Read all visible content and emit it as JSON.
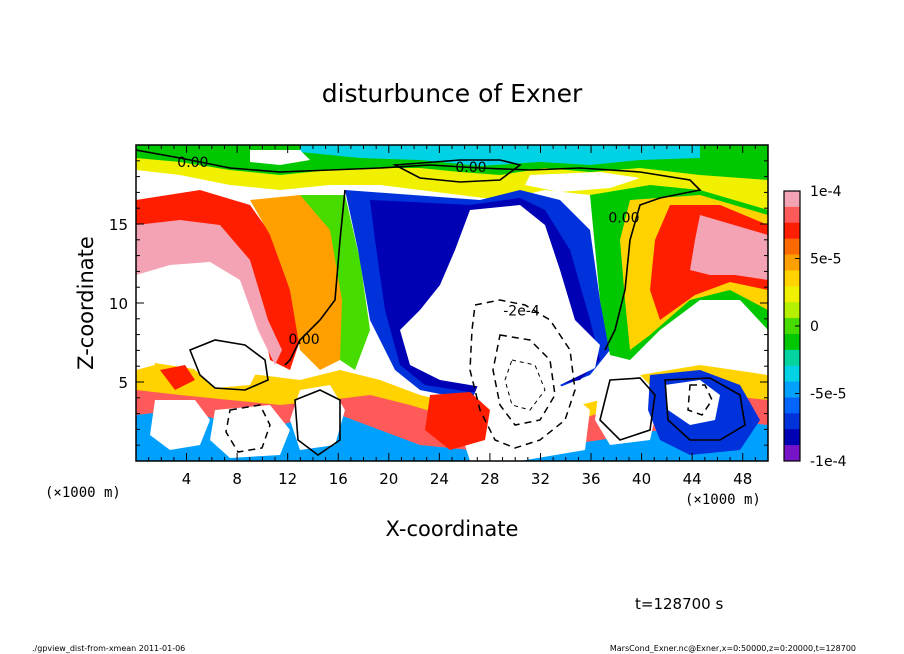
{
  "chart_data": {
    "type": "heatmap",
    "title": "disturbunce of Exner",
    "xlabel": "X-coordinate",
    "ylabel": "Z-coordinate",
    "x_unit_left": "(×1000 m)",
    "x_unit_right": "(×1000 m)",
    "xlim": [
      0,
      50
    ],
    "ylim": [
      0,
      20
    ],
    "x_ticks": [
      4,
      8,
      12,
      16,
      20,
      24,
      28,
      32,
      36,
      40,
      44,
      48
    ],
    "y_ticks": [
      5,
      10,
      15
    ],
    "colorbar": {
      "min": -0.0001,
      "max": 0.0001,
      "ticks": [
        {
          "value": 0.0001,
          "label": "1e-4"
        },
        {
          "value": 5e-05,
          "label": "5e-5"
        },
        {
          "value": 0,
          "label": "0"
        },
        {
          "value": -5e-05,
          "label": "-5e-5"
        },
        {
          "value": -0.0001,
          "label": "-1e-4"
        }
      ],
      "colors": [
        "#f4a3b4",
        "#ff5a5a",
        "#ff1e00",
        "#ff6a00",
        "#ffa000",
        "#ffd200",
        "#f0f000",
        "#b4f000",
        "#46dc00",
        "#00c800",
        "#00d2a0",
        "#00d2e6",
        "#00a0ff",
        "#0064ff",
        "#0032dc",
        "#0000b4",
        "#7814c8"
      ]
    },
    "contour_labels": [
      {
        "text": "0.00",
        "x": 4.5,
        "z": 18.6
      },
      {
        "text": "0.00",
        "x": 26.5,
        "z": 18.3
      },
      {
        "text": "0.00",
        "x": 38.6,
        "z": 15.1
      },
      {
        "text": "0.00",
        "x": 13.3,
        "z": 7.4
      },
      {
        "text": "-2e-4",
        "x": 30.5,
        "z": 9.2
      }
    ]
  },
  "time_label": "t=128700 s",
  "footer_left": "./gpview_dist-from-xmean  2011-01-06",
  "footer_right": "MarsCond_Exner.nc@Exner,x=0:50000,z=0:20000,t=128700"
}
